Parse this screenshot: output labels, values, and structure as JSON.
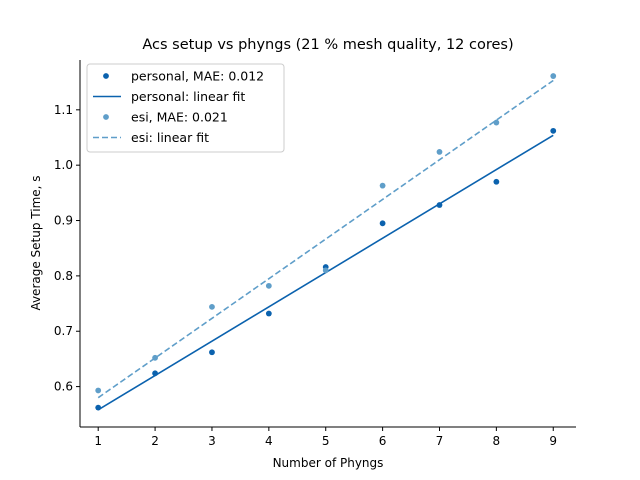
{
  "chart_data": {
    "type": "scatter",
    "title": "Acs setup vs phyngs (21 % mesh quality, 12 cores)",
    "xlabel": "Number of Phyngs",
    "ylabel": "Average Setup Time, s",
    "xlim": [
      0.68,
      9.4
    ],
    "ylim": [
      0.527,
      1.19
    ],
    "xticks": [
      "1",
      "2",
      "3",
      "4",
      "5",
      "6",
      "7",
      "8",
      "9"
    ],
    "yticks": [
      "0.6",
      "0.7",
      "0.8",
      "0.9",
      "1.0",
      "1.1"
    ],
    "x": [
      1,
      2,
      3,
      4,
      5,
      6,
      7,
      8,
      9
    ],
    "legend_position": "top-left",
    "grid": false,
    "series": [
      {
        "name": "personal, MAE: 0.012",
        "kind": "points",
        "color": "#0b62ae",
        "values": [
          0.562,
          0.624,
          0.662,
          0.732,
          0.816,
          0.895,
          0.928,
          0.97,
          1.062
        ]
      },
      {
        "name": "personal: linear fit",
        "kind": "line",
        "style": "solid",
        "color": "#0b62ae",
        "endpoints": [
          [
            1,
            0.558
          ],
          [
            9,
            1.054
          ]
        ]
      },
      {
        "name": "esi, MAE: 0.021",
        "kind": "points",
        "color": "#5f9ec9",
        "values": [
          0.593,
          0.652,
          0.744,
          0.782,
          0.81,
          0.963,
          1.024,
          1.077,
          1.161
        ]
      },
      {
        "name": "esi: linear fit",
        "kind": "line",
        "style": "dashed",
        "color": "#5f9ec9",
        "endpoints": [
          [
            1,
            0.58
          ],
          [
            9,
            1.153
          ]
        ]
      }
    ]
  }
}
